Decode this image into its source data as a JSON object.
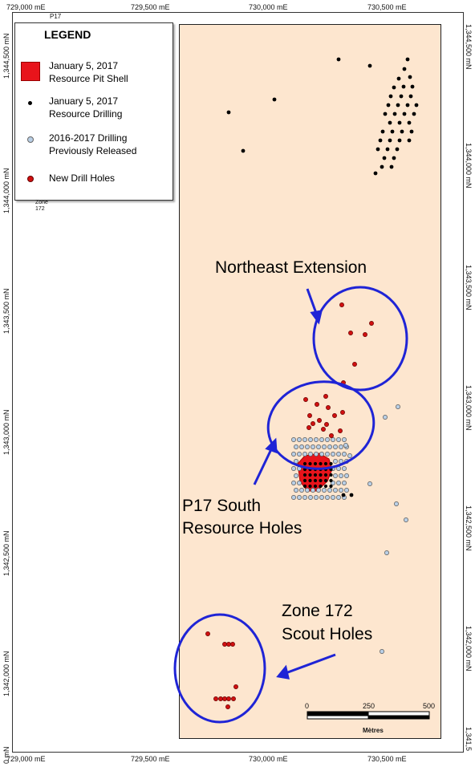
{
  "map": {
    "top_label": "P17",
    "zone_label_line1": "Zone",
    "zone_label_line2": "172",
    "easting_labels": [
      "729,000 mE",
      "729,500 mE",
      "730,000 mE",
      "730,500 mE"
    ],
    "northing_labels_left": [
      "1,344,500 mN",
      "1,344,000 mN",
      "1,343,500 mN",
      "1,343,000 mN",
      "1,342,500 mN",
      "1,342,000 mN",
      "0 mN"
    ],
    "northing_labels_right": [
      "1,344,500 mN",
      "1,344,000 mN",
      "1,343,500 mN",
      "1,343,000 mN",
      "1,342,500 mN",
      "1,342,000 mN",
      "1,341,5"
    ],
    "colors": {
      "map_background": "#fde6cf",
      "pit_shell": "#e8141b",
      "resource_drilling": "#000000",
      "previous_drilling": "#b9cfe6",
      "new_holes": "#d01010",
      "ellipse": "#1f24d6"
    }
  },
  "legend": {
    "title": "LEGEND",
    "items": [
      {
        "label_line1": "January 5, 2017",
        "label_line2": "Resource Pit Shell",
        "symbol": "red-square"
      },
      {
        "label_line1": "January 5, 2017",
        "label_line2": "Resource Drilling",
        "symbol": "black-dot"
      },
      {
        "label_line1": "2016-2017 Drilling",
        "label_line2": "Previously Released",
        "symbol": "light-blue-circle"
      },
      {
        "label_line1": "New Drill Holes",
        "label_line2": "",
        "symbol": "red-dot"
      }
    ]
  },
  "annotations": {
    "northeast": "Northeast Extension",
    "p17_line1": "P17 South",
    "p17_line2": "Resource Holes",
    "zone_line1": "Zone 172",
    "zone_line2": "Scout Holes"
  },
  "scale": {
    "ticks": [
      "0",
      "250",
      "500"
    ],
    "unit": "Mètres"
  }
}
